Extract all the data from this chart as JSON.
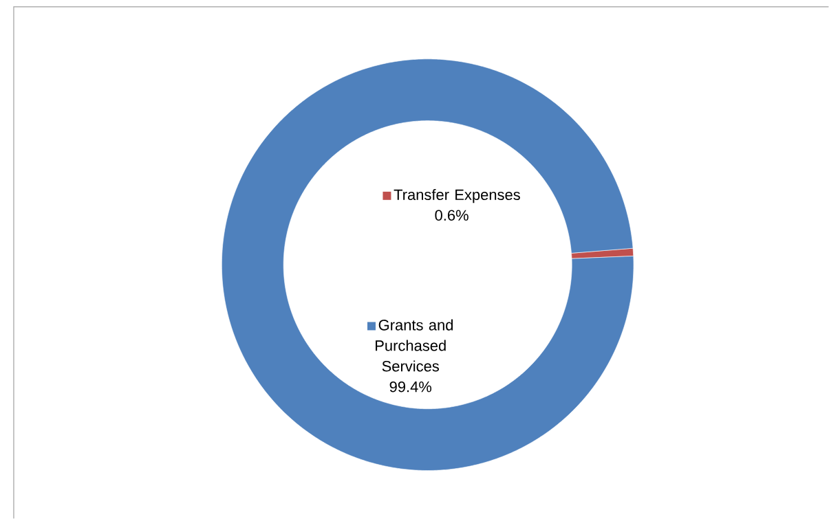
{
  "chart_data": {
    "type": "donut",
    "categories": [
      "Transfer Expenses",
      "Grants and Purchased Services"
    ],
    "values": [
      0.6,
      99.4
    ],
    "colors": [
      "#c0504d",
      "#4f81bd"
    ],
    "value_labels": [
      "0.6%",
      "99.4%"
    ],
    "legend": "center"
  }
}
